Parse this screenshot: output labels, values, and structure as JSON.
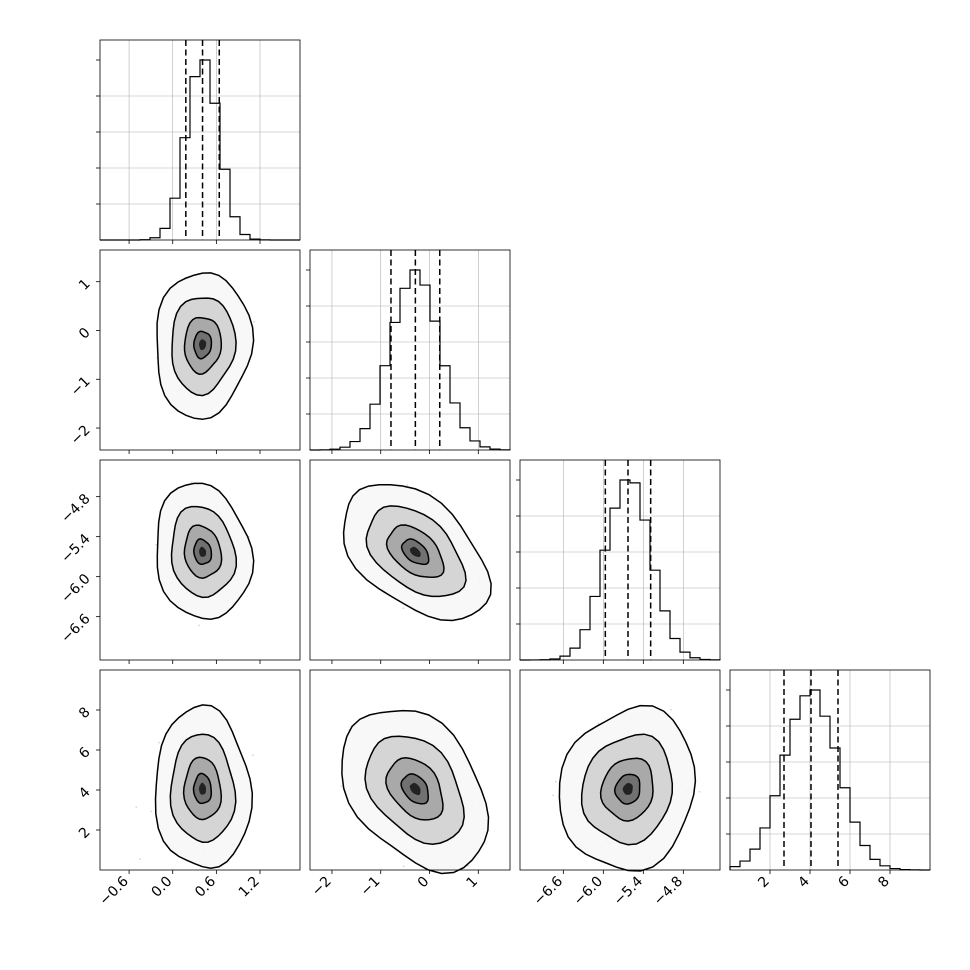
{
  "chart_data": {
    "type": "corner",
    "parameters": [
      {
        "name": "",
        "range": [
          -1.0,
          1.75
        ],
        "ticks": [
          -0.6,
          0.0,
          0.6,
          1.2
        ],
        "tick_labels": [
          "−0.6",
          "0.0",
          "0.6",
          "1.2"
        ],
        "mean": 0.41,
        "sigma": 0.22,
        "quantiles": [
          0.18,
          0.41,
          0.64
        ]
      },
      {
        "name": "",
        "range": [
          -2.45,
          1.65
        ],
        "ticks": [
          -2,
          -1,
          0,
          1
        ],
        "tick_labels": [
          "−2",
          "−1",
          "0",
          "1"
        ],
        "mean": -0.29,
        "sigma": 0.5,
        "quantiles": [
          -0.79,
          -0.29,
          0.21
        ]
      },
      {
        "name": "",
        "range": [
          -7.25,
          -4.25
        ],
        "ticks": [
          -6.6,
          -6.0,
          -5.4,
          -4.8
        ],
        "tick_labels": [
          "−6.6",
          "−6.0",
          "−5.4",
          "−4.8"
        ],
        "mean": -5.63,
        "sigma": 0.34,
        "quantiles": [
          -5.97,
          -5.63,
          -5.29
        ]
      },
      {
        "name": "",
        "range": [
          0.0,
          10.0
        ],
        "ticks": [
          2,
          4,
          6,
          8
        ],
        "tick_labels": [
          "2",
          "4",
          "6",
          "8"
        ],
        "mean": 4.05,
        "sigma": 1.35,
        "quantiles": [
          2.7,
          4.05,
          5.4
        ]
      }
    ],
    "correlations": [
      [
        1.0,
        0.05,
        -0.12,
        -0.05
      ],
      [
        0.05,
        1.0,
        -0.45,
        -0.35
      ],
      [
        -0.12,
        -0.45,
        1.0,
        0.1
      ],
      [
        -0.05,
        -0.35,
        0.1,
        1.0
      ]
    ],
    "contour_levels": [
      "39%",
      "86%",
      "99%",
      "core"
    ],
    "grid": true,
    "colors": {
      "lines": "#000000",
      "points": "#8c8c8c",
      "grid": "#b0b0b0"
    }
  }
}
